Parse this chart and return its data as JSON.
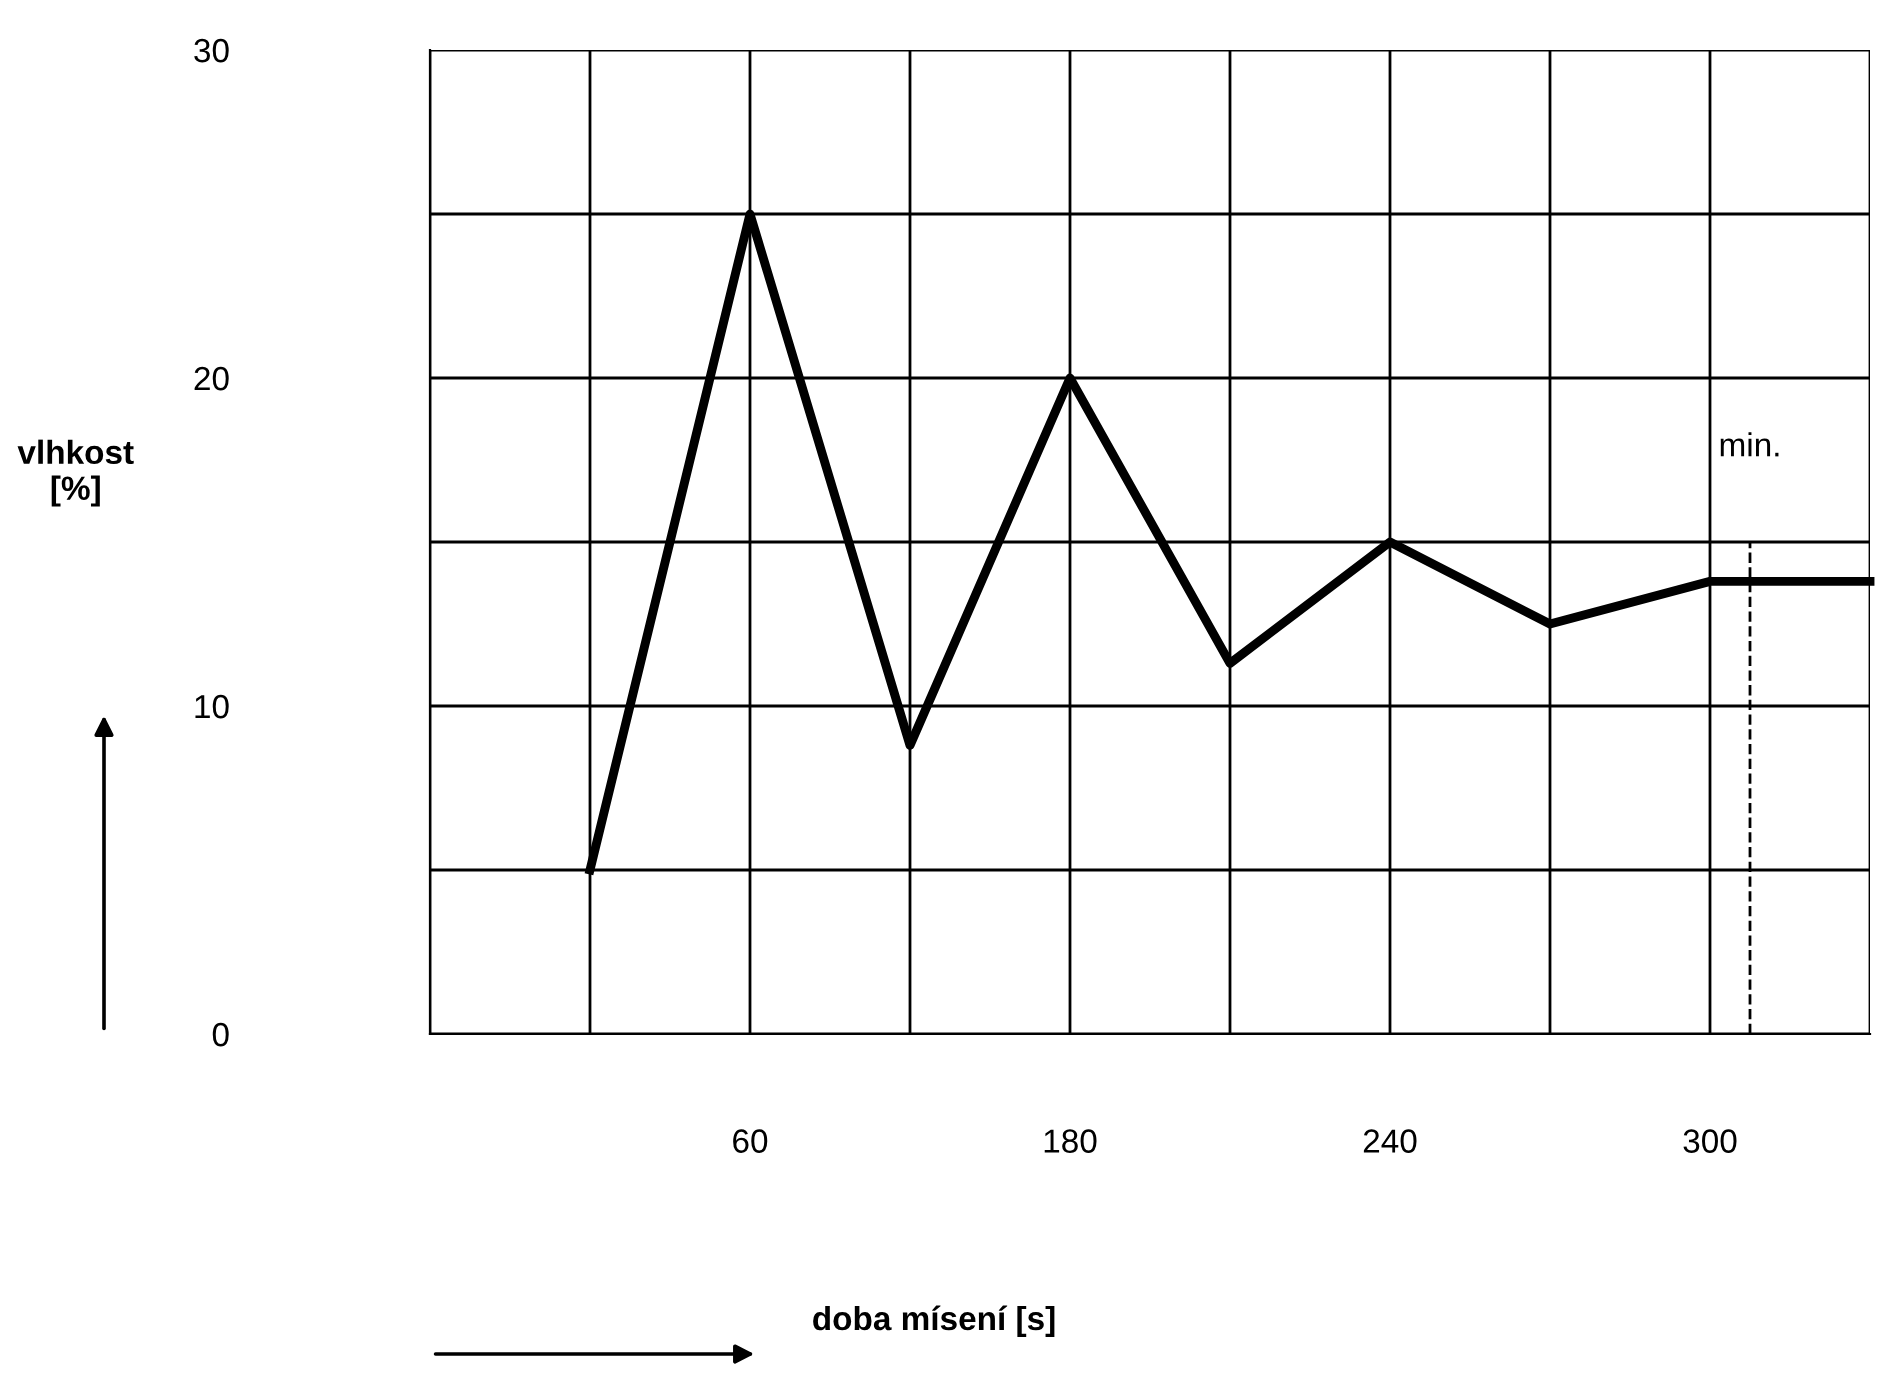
{
  "chart_data": {
    "type": "line",
    "xlabel": "doba mísení [s]",
    "ylabel": "vlhkost\n[%]",
    "categories": [
      null,
      null,
      "60",
      null,
      "180",
      null,
      "240",
      null,
      "300",
      null
    ],
    "series": [
      {
        "color": "#000000",
        "values": [
          null,
          5,
          25,
          8.8,
          20,
          11.3,
          15,
          12.5,
          13.8,
          13.8
        ]
      }
    ],
    "ylim": [
      0,
      30
    ],
    "yticks": [
      0,
      {
        "value": 5,
        "label": null
      },
      10,
      {
        "value": 15,
        "label": null
      },
      20,
      {
        "value": 25,
        "label": null
      },
      30
    ],
    "grid": true,
    "marker": "none",
    "line_style": "solid",
    "annotations": [
      "min."
    ]
  }
}
